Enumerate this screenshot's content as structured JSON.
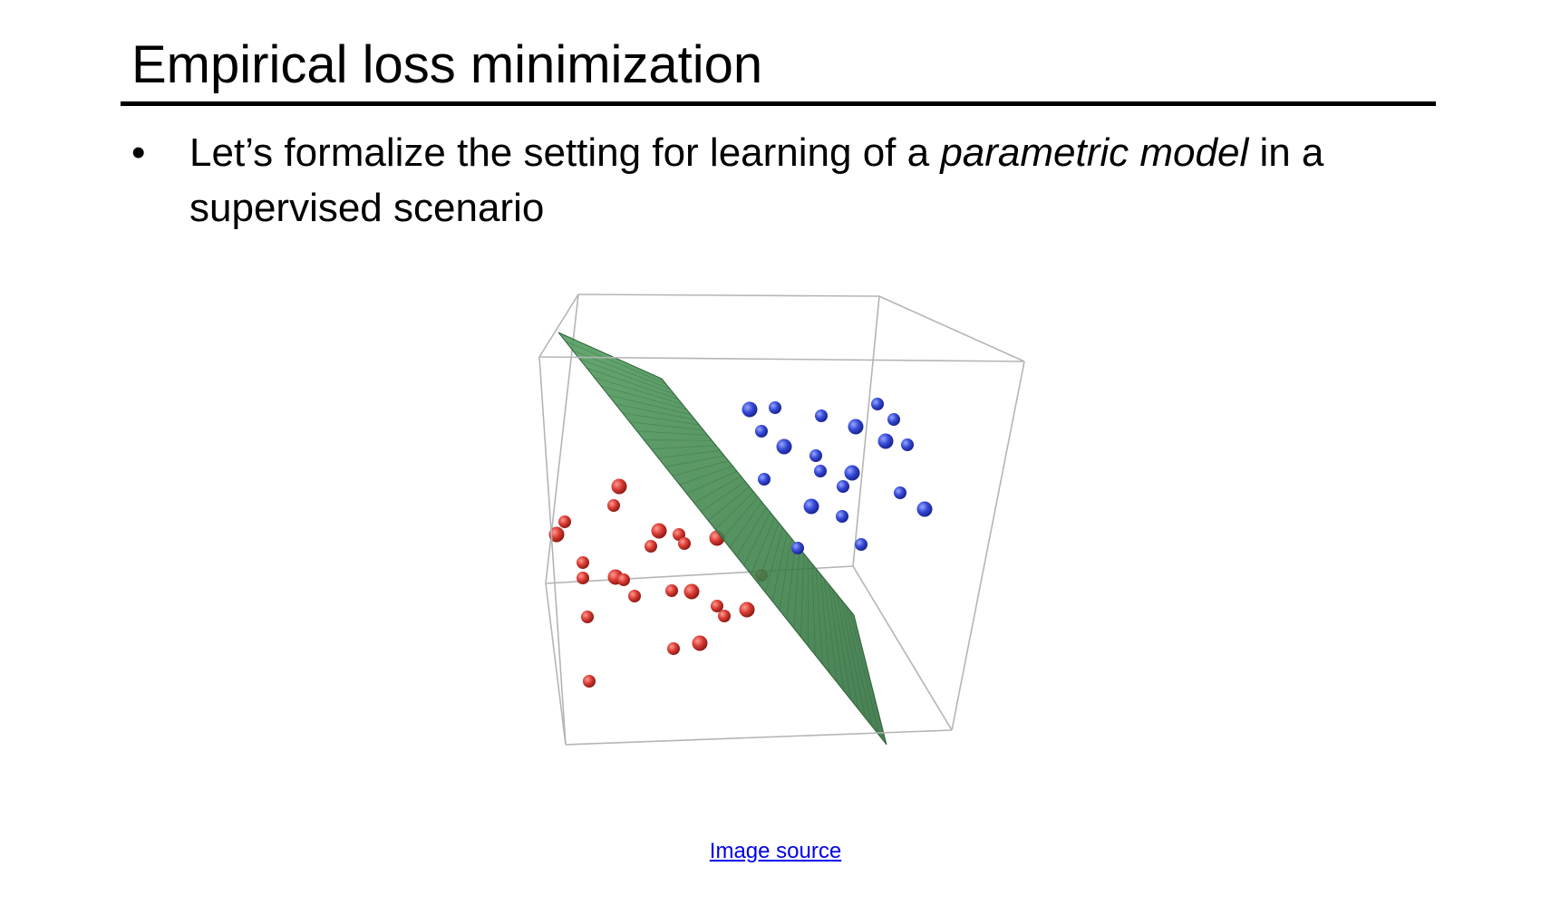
{
  "slide": {
    "title": "Empirical loss minimization",
    "bullet": {
      "marker": "•",
      "text_before": "Let’s formalize the setting for learning of a ",
      "text_italic": "parametric model",
      "text_after": " in a supervised scenario"
    },
    "source_link_label": "Image source"
  },
  "figure": {
    "colors": {
      "class_a": "#d93a32",
      "class_b": "#3348d6",
      "plane": "#3f8a4e",
      "box_edges": "#b5b5b5"
    }
  }
}
